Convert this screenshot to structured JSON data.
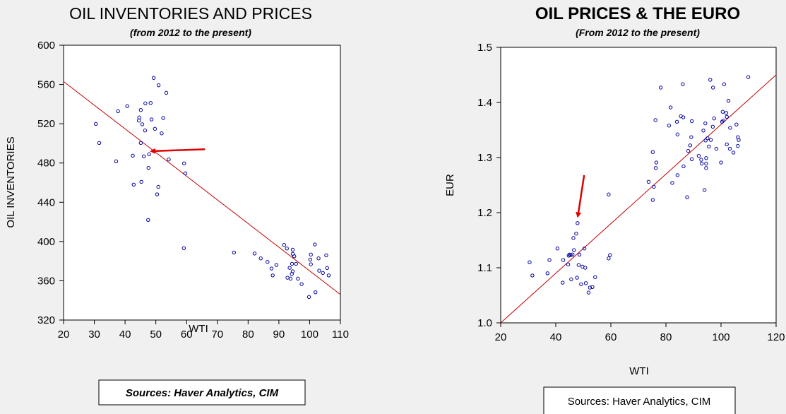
{
  "chart_data": [
    {
      "type": "scatter",
      "title": "OIL INVENTORIES AND PRICES",
      "subtitle": "(from 2012 to the present)",
      "xlabel": "WTI",
      "ylabel": "OIL INVENTORIES",
      "xlim": [
        20,
        110
      ],
      "ylim": [
        320,
        600
      ],
      "xticks": [
        "20",
        "30",
        "40",
        "50",
        "60",
        "70",
        "80",
        "90",
        "100",
        "110"
      ],
      "yticks": [
        "320",
        "360",
        "400",
        "440",
        "480",
        "520",
        "560",
        "600"
      ],
      "grid": false,
      "marker_color": "#0000a0",
      "fit_line": {
        "x": [
          20,
          110
        ],
        "y": [
          563,
          346
        ],
        "color": "#c00000"
      },
      "annotation_arrow": {
        "from": [
          66,
          494
        ],
        "to": [
          48.5,
          492
        ],
        "color": "#e00000"
      },
      "source": "Sources: Haver Analytics, CIM",
      "points": [
        [
          49.3,
          566.7
        ],
        [
          50.9,
          559.2
        ],
        [
          53.4,
          551.5
        ],
        [
          46.6,
          540.7
        ],
        [
          48.3,
          541.2
        ],
        [
          40.7,
          537.9
        ],
        [
          37.7,
          532.8
        ],
        [
          45.1,
          534
        ],
        [
          44.6,
          526.4
        ],
        [
          44.5,
          523.2
        ],
        [
          48.6,
          524.4
        ],
        [
          52.4,
          525.8
        ],
        [
          30.5,
          519.9
        ],
        [
          45.6,
          519.4
        ],
        [
          46.5,
          513.1
        ],
        [
          49.7,
          514.8
        ],
        [
          51.9,
          510.2
        ],
        [
          31.6,
          500.4
        ],
        [
          45.1,
          500.4
        ],
        [
          42.5,
          487.5
        ],
        [
          46.1,
          486.8
        ],
        [
          47.8,
          488.9
        ],
        [
          37.1,
          481.7
        ],
        [
          54.2,
          483.6
        ],
        [
          59.2,
          479.6
        ],
        [
          59.6,
          469.5
        ],
        [
          47.6,
          475
        ],
        [
          45.3,
          460.8
        ],
        [
          42.8,
          458
        ],
        [
          50.8,
          455.6
        ],
        [
          50.4,
          448.1
        ],
        [
          47.5,
          422
        ],
        [
          59.1,
          393.2
        ],
        [
          75.4,
          388.8
        ],
        [
          82.1,
          387.8
        ],
        [
          84.1,
          382.8
        ],
        [
          86.3,
          379.2
        ],
        [
          87.6,
          372.5
        ],
        [
          88,
          365.5
        ],
        [
          89.2,
          376.1
        ],
        [
          91.7,
          396.5
        ],
        [
          92.6,
          392.9
        ],
        [
          94.5,
          391.7
        ],
        [
          94.5,
          387.4
        ],
        [
          95,
          385
        ],
        [
          94.3,
          377.3
        ],
        [
          95.6,
          377.3
        ],
        [
          93.5,
          373.2
        ],
        [
          94.5,
          369.6
        ],
        [
          94.2,
          366.9
        ],
        [
          92.8,
          363.1
        ],
        [
          93.8,
          362.2
        ],
        [
          96.2,
          362.2
        ],
        [
          97.4,
          356.6
        ],
        [
          99.8,
          343.5
        ],
        [
          101.9,
          348.3
        ],
        [
          101.7,
          397
        ],
        [
          100.4,
          386.7
        ],
        [
          100.2,
          381.6
        ],
        [
          100.4,
          376.8
        ],
        [
          102.9,
          382.8
        ],
        [
          105.4,
          385.9
        ],
        [
          103.1,
          370.3
        ],
        [
          104.3,
          368
        ],
        [
          105.7,
          373
        ],
        [
          106.2,
          365.5
        ]
      ]
    },
    {
      "type": "scatter",
      "title": "OIL PRICES & THE EURO",
      "subtitle": "(From 2012 to the present)",
      "xlabel": "WTI",
      "ylabel": "EUR",
      "xlim": [
        20,
        120
      ],
      "ylim": [
        1.0,
        1.5
      ],
      "xticks": [
        "20",
        "40",
        "60",
        "80",
        "100",
        "120"
      ],
      "yticks": [
        "1.0",
        "1.1",
        "1.2",
        "1.3",
        "1.4",
        "1.5"
      ],
      "grid": false,
      "marker_color": "#0000a0",
      "fit_line": {
        "x": [
          20,
          120
        ],
        "y": [
          1.0,
          1.45
        ],
        "color": "#c00000"
      },
      "annotation_arrow": {
        "from": [
          50.3,
          1.268
        ],
        "to": [
          48.0,
          1.193
        ],
        "color": "#e00000"
      },
      "source": "Sources:  Haver Analytics, CIM",
      "points": [
        [
          109.9,
          1.446
        ],
        [
          96.1,
          1.441
        ],
        [
          97.1,
          1.427
        ],
        [
          101.1,
          1.433
        ],
        [
          86.1,
          1.433
        ],
        [
          78.1,
          1.427
        ],
        [
          102.7,
          1.403
        ],
        [
          81.7,
          1.391
        ],
        [
          100.6,
          1.383
        ],
        [
          101.9,
          1.381
        ],
        [
          102.1,
          1.374
        ],
        [
          85.4,
          1.375
        ],
        [
          86.3,
          1.373
        ],
        [
          97.5,
          1.371
        ],
        [
          76.2,
          1.368
        ],
        [
          84,
          1.365
        ],
        [
          89.4,
          1.366
        ],
        [
          100.4,
          1.365
        ],
        [
          100.8,
          1.367
        ],
        [
          94.3,
          1.362
        ],
        [
          81.1,
          1.358
        ],
        [
          97,
          1.356
        ],
        [
          103.3,
          1.354
        ],
        [
          105.6,
          1.36
        ],
        [
          93.6,
          1.349
        ],
        [
          84.2,
          1.342
        ],
        [
          89.2,
          1.337
        ],
        [
          106.1,
          1.337
        ],
        [
          106.4,
          1.332
        ],
        [
          95.1,
          1.335
        ],
        [
          96.3,
          1.332
        ],
        [
          94.4,
          1.331
        ],
        [
          88.8,
          1.322
        ],
        [
          95.6,
          1.32
        ],
        [
          102.1,
          1.324
        ],
        [
          106.1,
          1.321
        ],
        [
          98.3,
          1.316
        ],
        [
          103.2,
          1.316
        ],
        [
          104.5,
          1.309
        ],
        [
          75.2,
          1.31
        ],
        [
          88.1,
          1.312
        ],
        [
          91.9,
          1.303
        ],
        [
          92.8,
          1.296
        ],
        [
          89.4,
          1.297
        ],
        [
          94.6,
          1.299
        ],
        [
          93,
          1.289
        ],
        [
          94.6,
          1.289
        ],
        [
          100,
          1.291
        ],
        [
          76.5,
          1.291
        ],
        [
          76.3,
          1.281
        ],
        [
          94.6,
          1.281
        ],
        [
          86.4,
          1.284
        ],
        [
          84.2,
          1.268
        ],
        [
          73.7,
          1.256
        ],
        [
          82.3,
          1.254
        ],
        [
          75.6,
          1.247
        ],
        [
          75.2,
          1.223
        ],
        [
          87.7,
          1.228
        ],
        [
          94,
          1.241
        ],
        [
          59.2,
          1.233
        ],
        [
          47.9,
          1.181
        ],
        [
          47.4,
          1.162
        ],
        [
          46.4,
          1.154
        ],
        [
          40.6,
          1.135
        ],
        [
          50.4,
          1.135
        ],
        [
          46.6,
          1.132
        ],
        [
          45,
          1.124
        ],
        [
          44.7,
          1.122
        ],
        [
          45.4,
          1.123
        ],
        [
          46.1,
          1.124
        ],
        [
          48.6,
          1.124
        ],
        [
          59.7,
          1.123
        ],
        [
          59.2,
          1.117
        ],
        [
          37.7,
          1.114
        ],
        [
          42.7,
          1.114
        ],
        [
          30.5,
          1.11
        ],
        [
          44.5,
          1.106
        ],
        [
          48.3,
          1.105
        ],
        [
          49.7,
          1.102
        ],
        [
          50.7,
          1.1
        ],
        [
          31.5,
          1.086
        ],
        [
          37,
          1.09
        ],
        [
          47.7,
          1.082
        ],
        [
          54.3,
          1.083
        ],
        [
          45.6,
          1.079
        ],
        [
          42.5,
          1.073
        ],
        [
          50.9,
          1.072
        ],
        [
          49.2,
          1.07
        ],
        [
          52.4,
          1.064
        ],
        [
          53.3,
          1.065
        ],
        [
          51.9,
          1.055
        ]
      ]
    }
  ]
}
